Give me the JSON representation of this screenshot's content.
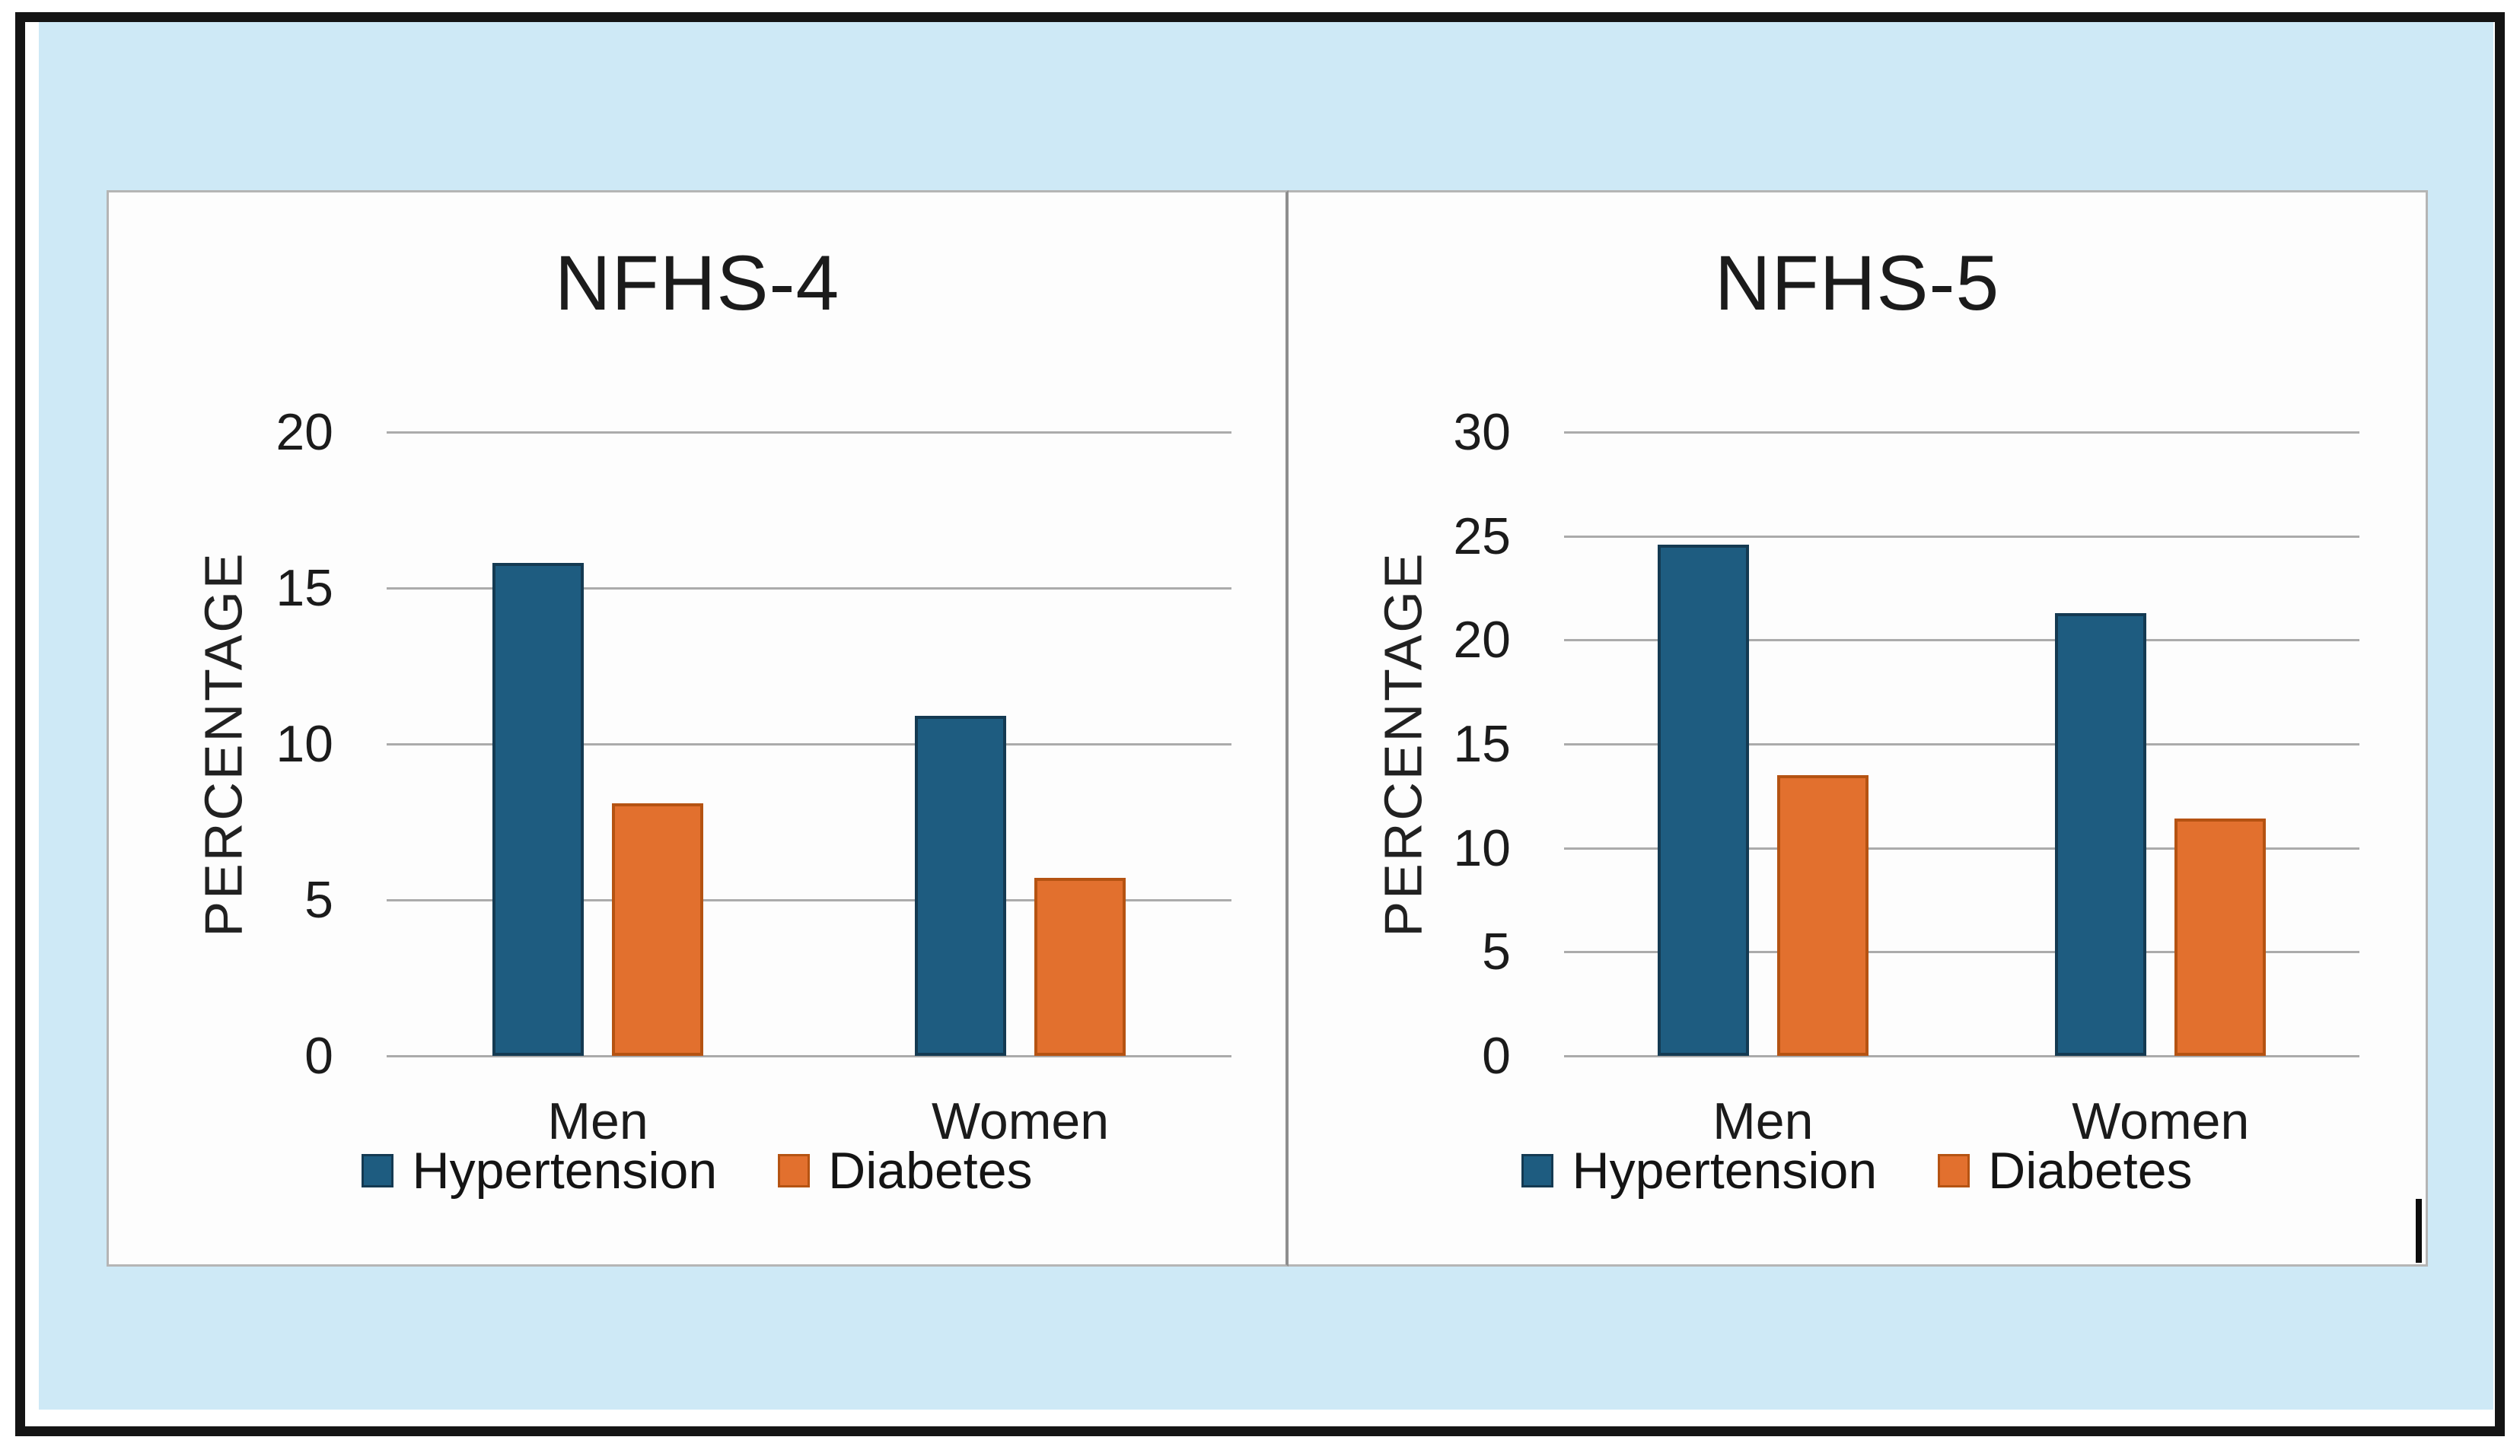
{
  "window": {
    "background": "#ffffff",
    "frame_border_color": "#141414",
    "canvas_background": "#cee9f6",
    "panel_background": "#fdfdfd",
    "panel_border_color": "#b5b5b5",
    "panel_divider_color": "#8e8e8e",
    "gridline_color": "#ababab",
    "text_color": "#1b1b1b"
  },
  "chart_data": [
    {
      "type": "bar",
      "title": "NFHS-4",
      "ylabel": "PERCENTAGE",
      "categories": [
        "Men",
        "Women"
      ],
      "series": [
        {
          "name": "Hypertension",
          "color": "#1e5c80",
          "border_color": "#143a52",
          "values": [
            15.8,
            10.9
          ]
        },
        {
          "name": "Diabetes",
          "color": "#e2702e",
          "border_color": "#b55312",
          "values": [
            8.1,
            5.7
          ]
        }
      ],
      "ylim": [
        0,
        20
      ],
      "yticks": [
        0,
        5,
        10,
        15,
        20
      ],
      "grid": true,
      "legend_position": "bottom"
    },
    {
      "type": "bar",
      "title": "NFHS-5",
      "ylabel": "PERCENTAGE",
      "categories": [
        "Men",
        "Women"
      ],
      "series": [
        {
          "name": "Hypertension",
          "color": "#1e5c80",
          "border_color": "#143a52",
          "values": [
            24.6,
            21.3
          ]
        },
        {
          "name": "Diabetes",
          "color": "#e2702e",
          "border_color": "#b55312",
          "values": [
            13.5,
            11.4
          ]
        }
      ],
      "ylim": [
        0,
        30
      ],
      "yticks": [
        0,
        5,
        10,
        15,
        20,
        25,
        30
      ],
      "grid": true,
      "legend_position": "bottom"
    }
  ]
}
